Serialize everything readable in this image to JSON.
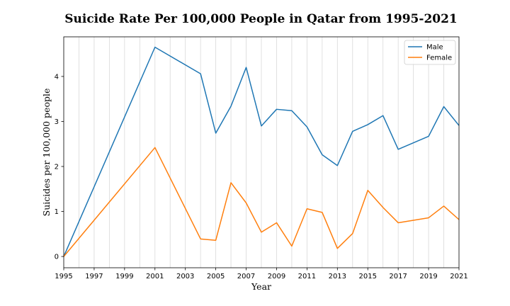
{
  "chart_data": {
    "type": "line",
    "title": "Suicide Rate Per 100,000 People in Qatar from 1995-2021",
    "xlabel": "Year",
    "ylabel": "Suicides per 100,000 people",
    "xlim": [
      1995,
      2021
    ],
    "ylim": [
      -0.25,
      4.88
    ],
    "xticks": [
      1995,
      1997,
      1999,
      2001,
      2003,
      2005,
      2007,
      2009,
      2011,
      2013,
      2015,
      2017,
      2019,
      2021
    ],
    "yticks": [
      0,
      1,
      2,
      3,
      4
    ],
    "grid": "vertical",
    "legend_position": "upper right",
    "series": [
      {
        "name": "Male",
        "color": "#1f77b4",
        "x": [
          1995,
          2001,
          2004,
          2005,
          2006,
          2007,
          2008,
          2009,
          2010,
          2011,
          2012,
          2013,
          2014,
          2015,
          2016,
          2017,
          2019,
          2020,
          2021
        ],
        "values": [
          0.0,
          4.65,
          4.06,
          2.74,
          3.34,
          4.2,
          2.9,
          3.27,
          3.24,
          2.88,
          2.26,
          2.02,
          2.78,
          2.93,
          3.13,
          2.38,
          2.67,
          3.33,
          2.91
        ]
      },
      {
        "name": "Female",
        "color": "#ff7f0e",
        "x": [
          1995,
          2001,
          2004,
          2005,
          2006,
          2007,
          2008,
          2009,
          2010,
          2011,
          2012,
          2013,
          2014,
          2015,
          2016,
          2017,
          2019,
          2020,
          2021
        ],
        "values": [
          0.0,
          2.42,
          0.39,
          0.36,
          1.64,
          1.19,
          0.54,
          0.75,
          0.23,
          1.06,
          0.98,
          0.18,
          0.51,
          1.47,
          1.09,
          0.75,
          0.86,
          1.12,
          0.82
        ]
      }
    ]
  }
}
